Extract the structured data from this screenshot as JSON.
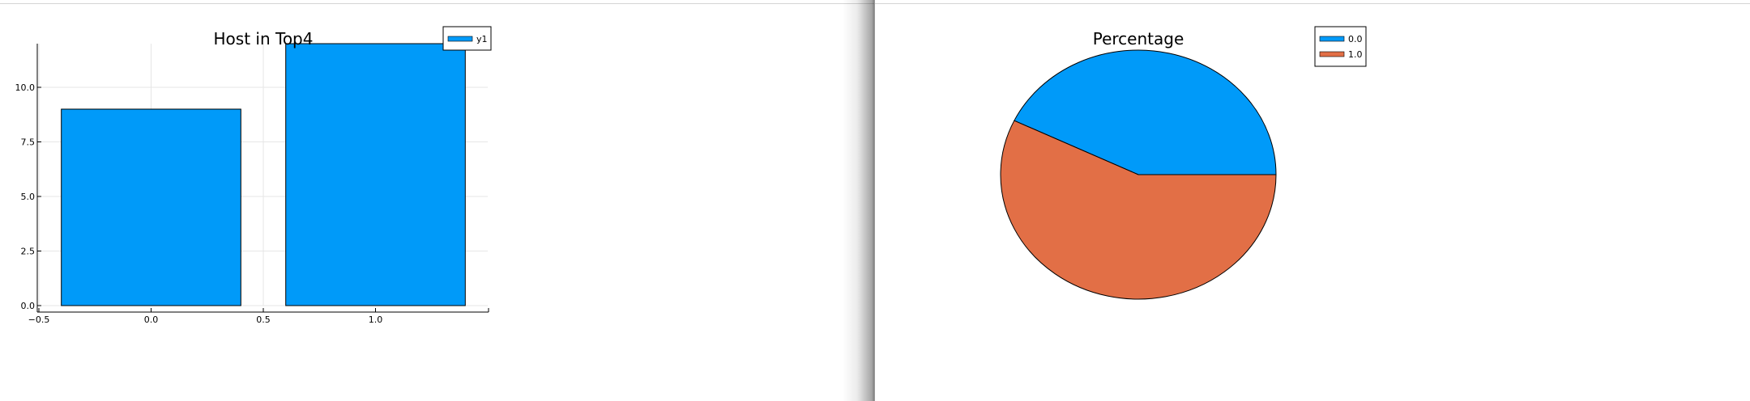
{
  "chart_data": [
    {
      "type": "bar",
      "title": "Host in Top4",
      "x": [
        0.0,
        1.0
      ],
      "bar_width": 0.8,
      "series": [
        {
          "name": "y1",
          "values": [
            9,
            12
          ],
          "color": "#009af9"
        }
      ],
      "xlim": [
        -0.5,
        1.5
      ],
      "ylim": [
        0,
        12
      ],
      "xticks": [
        -0.5,
        0.0,
        0.5,
        1.0
      ],
      "xtick_labels": [
        "−0.5",
        "0.0",
        "0.5",
        "1.0"
      ],
      "yticks": [
        0.0,
        2.5,
        5.0,
        7.5,
        10.0
      ],
      "ytick_labels": [
        "0.0",
        "2.5",
        "5.0",
        "7.5",
        "10.0"
      ],
      "xlabel": "",
      "ylabel": "",
      "grid": true,
      "legend": "top-right"
    },
    {
      "type": "pie",
      "title": "Percentage",
      "labels": [
        "0.0",
        "1.0"
      ],
      "values": [
        9,
        12
      ],
      "colors": [
        "#009af9",
        "#e26f46"
      ],
      "legend": "top-right"
    }
  ]
}
